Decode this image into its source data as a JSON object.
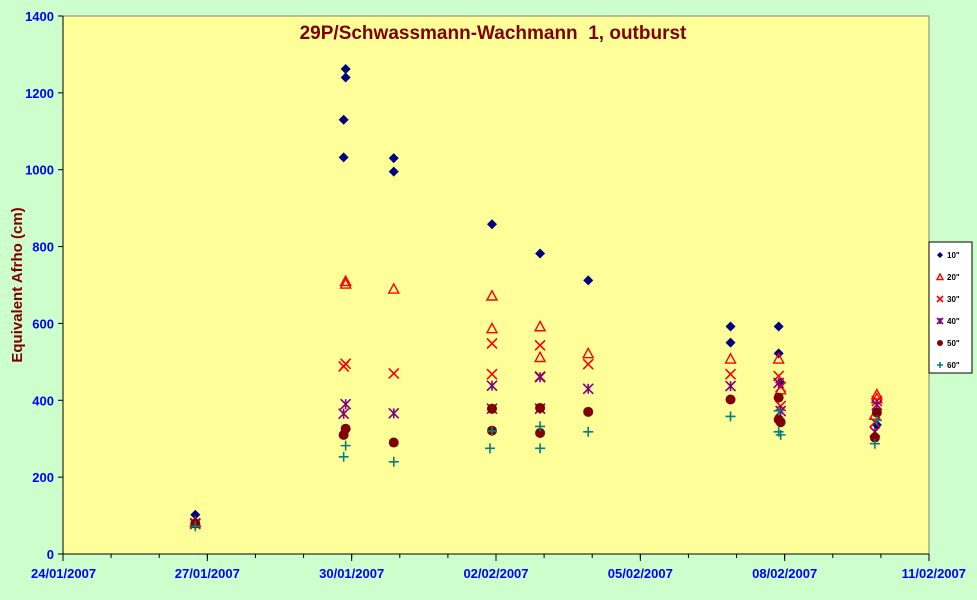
{
  "chart_data": {
    "type": "scatter",
    "title": "29P/Schwassmann-Wachmann  1, outburst",
    "xlabel": "",
    "ylabel": "Equivalent Afrho (cm)",
    "xlim": [
      "24/01/2007",
      "11/02/2007"
    ],
    "ylim": [
      0,
      1400
    ],
    "x_ticks": [
      "24/01/2007",
      "27/01/2007",
      "30/01/2007",
      "02/02/2007",
      "05/02/2007",
      "08/02/2007",
      "11/02/2007"
    ],
    "y_ticks": [
      0,
      200,
      400,
      600,
      800,
      1000,
      1200,
      1400
    ],
    "grid": false,
    "legend_position": "right",
    "series": [
      {
        "name": "10\"",
        "marker": "diamond",
        "color": "#000080",
        "points": [
          [
            "26/01/2007 18:00",
            102
          ],
          [
            "29/01/2007 21:00",
            1262
          ],
          [
            "29/01/2007 21:00",
            1240
          ],
          [
            "29/01/2007 20:00",
            1130
          ],
          [
            "29/01/2007 20:00",
            1032
          ],
          [
            "30/01/2007 21:00",
            1030
          ],
          [
            "30/01/2007 21:00",
            995
          ],
          [
            "01/02/2007 22:00",
            858
          ],
          [
            "02/02/2007 22:00",
            782
          ],
          [
            "03/02/2007 22:00",
            712
          ],
          [
            "06/02/2007 21:00",
            592
          ],
          [
            "06/02/2007 21:00",
            550
          ],
          [
            "07/02/2007 21:00",
            592
          ],
          [
            "07/02/2007 21:00",
            522
          ],
          [
            "07/02/2007 22:00",
            445
          ],
          [
            "09/02/2007 22:00",
            336
          ]
        ]
      },
      {
        "name": "20\"",
        "marker": "triangle",
        "color": "#ff0000",
        "points": [
          [
            "26/01/2007 18:00",
            83
          ],
          [
            "29/01/2007 21:00",
            710
          ],
          [
            "29/01/2007 21:00",
            703
          ],
          [
            "30/01/2007 21:00",
            690
          ],
          [
            "01/02/2007 22:00",
            672
          ],
          [
            "01/02/2007 22:00",
            587
          ],
          [
            "02/02/2007 22:00",
            592
          ],
          [
            "02/02/2007 22:00",
            512
          ],
          [
            "03/02/2007 22:00",
            522
          ],
          [
            "06/02/2007 21:00",
            508
          ],
          [
            "07/02/2007 21:00",
            508
          ],
          [
            "07/02/2007 22:00",
            428
          ],
          [
            "09/02/2007 22:00",
            415
          ],
          [
            "09/02/2007 22:00",
            405
          ],
          [
            "09/02/2007 21:00",
            362
          ]
        ]
      },
      {
        "name": "30\"",
        "marker": "x",
        "color": "#ff0000",
        "points": [
          [
            "26/01/2007 18:00",
            78
          ],
          [
            "29/01/2007 21:00",
            495
          ],
          [
            "29/01/2007 20:00",
            488
          ],
          [
            "30/01/2007 21:00",
            470
          ],
          [
            "01/02/2007 22:00",
            548
          ],
          [
            "01/02/2007 22:00",
            468
          ],
          [
            "02/02/2007 22:00",
            543
          ],
          [
            "02/02/2007 22:00",
            462
          ],
          [
            "03/02/2007 22:00",
            494
          ],
          [
            "06/02/2007 21:00",
            468
          ],
          [
            "07/02/2007 21:00",
            463
          ],
          [
            "07/02/2007 22:00",
            435
          ],
          [
            "07/02/2007 22:00",
            385
          ],
          [
            "09/02/2007 22:00",
            398
          ],
          [
            "09/02/2007 21:00",
            343
          ]
        ]
      },
      {
        "name": "40\"",
        "marker": "star",
        "color": "#800080",
        "points": [
          [
            "26/01/2007 18:00",
            80
          ],
          [
            "29/01/2007 21:00",
            390
          ],
          [
            "29/01/2007 20:00",
            365
          ],
          [
            "30/01/2007 21:00",
            366
          ],
          [
            "01/02/2007 22:00",
            438
          ],
          [
            "01/02/2007 22:00",
            378
          ],
          [
            "02/02/2007 22:00",
            460
          ],
          [
            "02/02/2007 22:00",
            378
          ],
          [
            "03/02/2007 22:00",
            430
          ],
          [
            "06/02/2007 21:00",
            437
          ],
          [
            "07/02/2007 21:00",
            445
          ],
          [
            "07/02/2007 22:00",
            372
          ],
          [
            "09/02/2007 22:00",
            388
          ],
          [
            "09/02/2007 21:00",
            318
          ]
        ]
      },
      {
        "name": "50\"",
        "marker": "circle",
        "color": "#800000",
        "points": [
          [
            "26/01/2007 18:00",
            79
          ],
          [
            "29/01/2007 21:00",
            326
          ],
          [
            "29/01/2007 20:00",
            310
          ],
          [
            "30/01/2007 21:00",
            290
          ],
          [
            "01/02/2007 22:00",
            378
          ],
          [
            "01/02/2007 22:00",
            321
          ],
          [
            "02/02/2007 22:00",
            380
          ],
          [
            "02/02/2007 22:00",
            315
          ],
          [
            "03/02/2007 22:00",
            370
          ],
          [
            "06/02/2007 21:00",
            402
          ],
          [
            "07/02/2007 21:00",
            407
          ],
          [
            "07/02/2007 21:00",
            350
          ],
          [
            "07/02/2007 22:00",
            343
          ],
          [
            "09/02/2007 22:00",
            368
          ],
          [
            "09/02/2007 21:00",
            303
          ]
        ]
      },
      {
        "name": "60\"",
        "marker": "plus",
        "color": "#008080",
        "points": [
          [
            "26/01/2007 18:00",
            72
          ],
          [
            "29/01/2007 21:00",
            282
          ],
          [
            "29/01/2007 20:00",
            253
          ],
          [
            "30/01/2007 21:00",
            240
          ],
          [
            "01/02/2007 22:00",
            320
          ],
          [
            "01/02/2007 21:00",
            275
          ],
          [
            "02/02/2007 22:00",
            332
          ],
          [
            "02/02/2007 22:00",
            275
          ],
          [
            "03/02/2007 22:00",
            318
          ],
          [
            "06/02/2007 21:00",
            358
          ],
          [
            "07/02/2007 21:00",
            373
          ],
          [
            "07/02/2007 21:00",
            318
          ],
          [
            "07/02/2007 22:00",
            310
          ],
          [
            "09/02/2007 22:00",
            348
          ],
          [
            "09/02/2007 21:00",
            287
          ]
        ]
      }
    ]
  }
}
